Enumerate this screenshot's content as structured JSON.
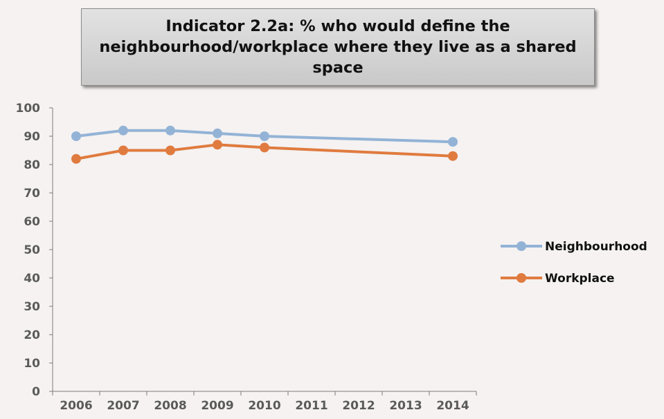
{
  "chart_data": {
    "type": "line",
    "title": "Indicator 2.2a: % who would define the neighbourhood/workplace where they live as a shared space",
    "categories": [
      "2006",
      "2007",
      "2008",
      "2009",
      "2010",
      "2011",
      "2012",
      "2013",
      "2014"
    ],
    "ylim": [
      0,
      100
    ],
    "yticks": [
      0,
      10,
      20,
      30,
      40,
      50,
      60,
      70,
      80,
      90,
      100
    ],
    "grid": false,
    "legend_position": "right",
    "series": [
      {
        "name": "Neighbourhood",
        "color": "#93b3d6",
        "points": [
          {
            "x": "2006",
            "y": 90
          },
          {
            "x": "2007",
            "y": 92
          },
          {
            "x": "2008",
            "y": 92
          },
          {
            "x": "2009",
            "y": 91
          },
          {
            "x": "2010",
            "y": 90
          },
          {
            "x": "2014",
            "y": 88
          }
        ]
      },
      {
        "name": "Workplace",
        "color": "#e07b3f",
        "points": [
          {
            "x": "2006",
            "y": 82
          },
          {
            "x": "2007",
            "y": 85
          },
          {
            "x": "2008",
            "y": 85
          },
          {
            "x": "2009",
            "y": 87
          },
          {
            "x": "2010",
            "y": 86
          },
          {
            "x": "2014",
            "y": 83
          }
        ]
      }
    ]
  }
}
